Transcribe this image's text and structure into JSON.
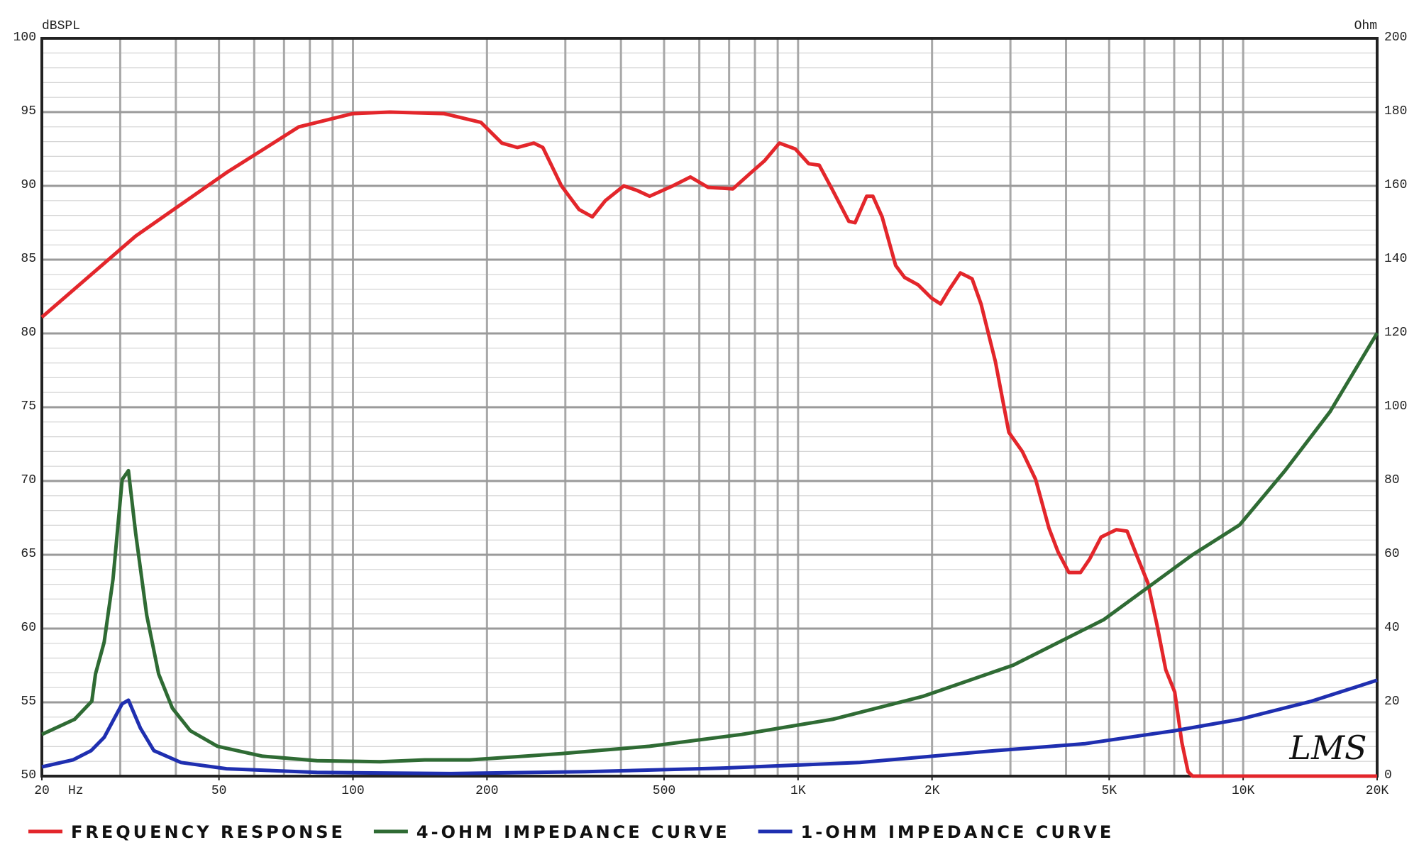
{
  "chart_data": {
    "type": "line",
    "ylabel": "dBSPL",
    "y2label": "Ohm",
    "xlabel": "Hz",
    "logo": "LMS",
    "xscale": "log",
    "grid": true,
    "minor_grid": true,
    "xlim": [
      20,
      20000
    ],
    "xticks": [
      20,
      50,
      100,
      200,
      500,
      {
        "value": 1000,
        "label": "1K"
      },
      {
        "value": 2000,
        "label": "2K"
      },
      {
        "value": 5000,
        "label": "5K"
      },
      {
        "value": 10000,
        "label": "10K"
      },
      {
        "value": 20000,
        "label": "20K"
      }
    ],
    "ylim": [
      50,
      100
    ],
    "yticks": [
      50,
      55,
      60,
      65,
      70,
      75,
      80,
      85,
      90,
      95,
      100
    ],
    "y2lim": [
      0,
      200
    ],
    "y2ticks": [
      0,
      20,
      40,
      60,
      80,
      100,
      120,
      140,
      160,
      180,
      200
    ],
    "legend": "bottom",
    "series": [
      {
        "name": "FREQUENCY RESPONSE",
        "color": "#e3262b",
        "x": [
          20,
          32.5,
          52,
          75.6,
          100,
          121,
          160,
          194,
          216,
          234,
          255,
          267,
          294,
          322,
          345,
          369,
          406,
          434,
          464,
          523,
          573,
          628,
          714,
          784,
          841,
          908,
          986,
          1057,
          1116,
          1196,
          1300,
          1343,
          1426,
          1473,
          1545,
          1657,
          1735,
          1860,
          1994,
          2090,
          2189,
          2316,
          2460,
          2577,
          2775,
          2976,
          3190,
          3418,
          3663,
          3838,
          4059,
          4311,
          4518,
          4797,
          5189,
          5486,
          5775,
          6106,
          6398,
          6701,
          7019,
          7282,
          7521,
          7697,
          20000
        ],
        "values": [
          81.1,
          86.6,
          90.9,
          94.0,
          94.9,
          95.0,
          94.9,
          94.3,
          92.9,
          92.6,
          92.9,
          92.6,
          90.0,
          88.4,
          87.9,
          89.0,
          90.0,
          89.7,
          89.3,
          90.0,
          90.6,
          89.9,
          89.8,
          90.9,
          91.7,
          92.9,
          92.5,
          91.5,
          91.4,
          89.7,
          87.6,
          87.5,
          89.3,
          89.3,
          87.9,
          84.6,
          83.8,
          83.3,
          82.4,
          82.0,
          83.0,
          84.1,
          83.7,
          82.0,
          78.1,
          73.3,
          72.0,
          70.1,
          66.8,
          65.2,
          63.8,
          63.8,
          64.7,
          66.2,
          66.7,
          66.6,
          64.9,
          63.1,
          60.3,
          57.2,
          55.7,
          52.3,
          50.3,
          50,
          50
        ]
      },
      {
        "name": "4-OHM IMPEDANCE CURVE",
        "color": "#2f6b34",
        "axis": "y2",
        "x": [
          20,
          23.7,
          25.9,
          26.4,
          27.6,
          28.9,
          30.3,
          31.3,
          32.5,
          34.4,
          36.6,
          39.3,
          43.1,
          49.6,
          62.6,
          83,
          115,
          145,
          183,
          294,
          464,
          748,
          1196,
          1904,
          3046,
          4860,
          7697,
          9820,
          12420,
          15680,
          20000
        ],
        "values": [
          11.3,
          15.4,
          20.3,
          27.7,
          36.3,
          53.4,
          80.4,
          82.8,
          65.7,
          43.6,
          27.7,
          18.4,
          12.3,
          8.1,
          5.4,
          4.2,
          3.9,
          4.4,
          4.4,
          6.1,
          8.1,
          11.3,
          15.4,
          21.6,
          30.1,
          42.4,
          60.0,
          68.1,
          82.8,
          98.8,
          120.1
        ]
      },
      {
        "name": "1-OHM IMPEDANCE CURVE",
        "color": "#1f2fb0",
        "axis": "y2",
        "x": [
          20,
          23.5,
          25.8,
          27.6,
          29.4,
          30.3,
          31.3,
          33.3,
          35.7,
          41.1,
          52,
          83,
          166,
          333,
          682,
          1376,
          2775,
          4421,
          7019,
          9820,
          14240,
          20000
        ],
        "values": [
          2.5,
          4.4,
          6.9,
          10.5,
          16.7,
          19.6,
          20.6,
          13.0,
          6.9,
          3.7,
          2.0,
          1.0,
          0.7,
          1.2,
          2.2,
          3.7,
          6.9,
          8.8,
          12.3,
          15.4,
          20.3,
          26.0
        ]
      }
    ]
  }
}
